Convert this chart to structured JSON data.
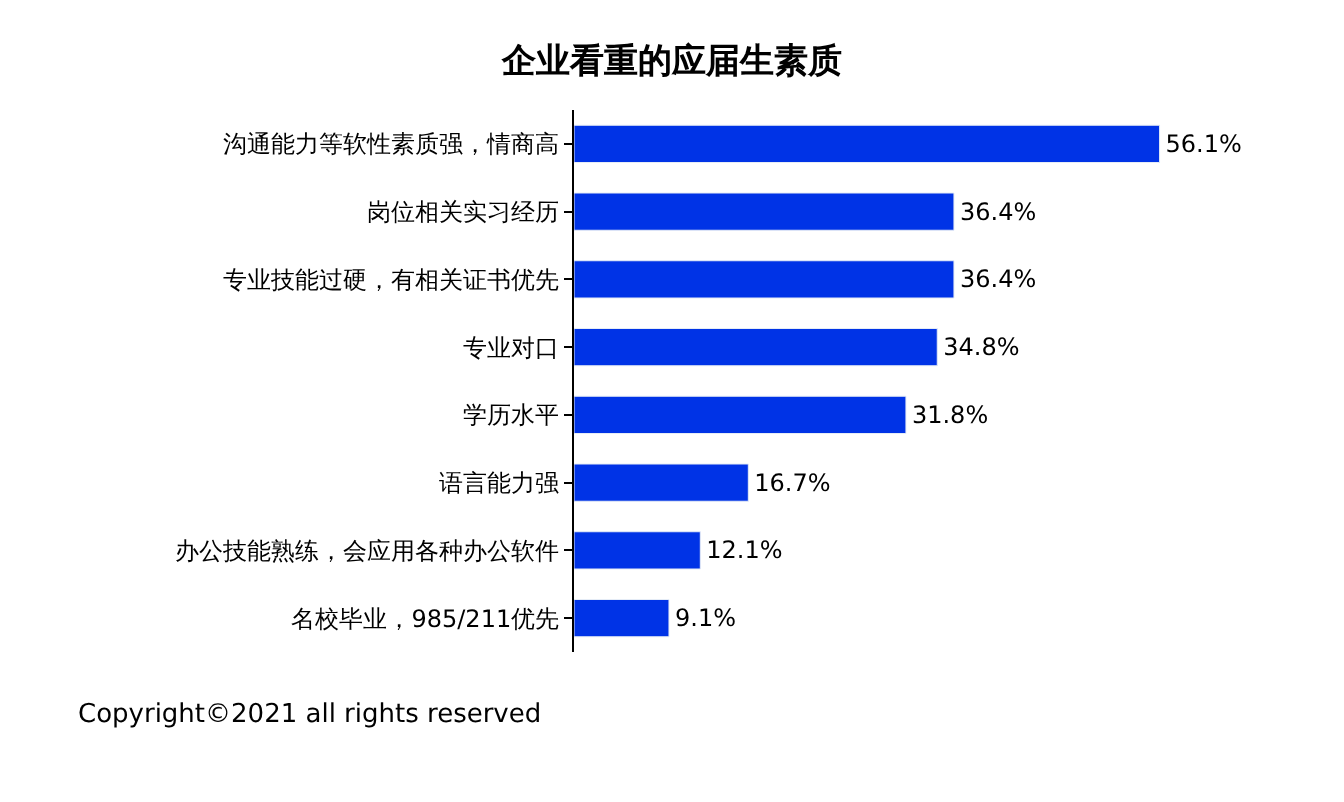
{
  "chart_data": {
    "type": "bar",
    "orientation": "horizontal",
    "title": "企业看重的应届生素质",
    "categories": [
      "沟通能力等软性素质强，情商高",
      "岗位相关实习经历",
      "专业技能过硬，有相关证书优先",
      "专业对口",
      "学历水平",
      "语言能力强",
      "办公技能熟练，会应用各种办公软件",
      "名校毕业，985/211优先"
    ],
    "values": [
      56.1,
      36.4,
      36.4,
      34.8,
      31.8,
      16.7,
      12.1,
      9.1
    ],
    "value_labels": [
      "56.1%",
      "36.4%",
      "36.4%",
      "34.8%",
      "31.8%",
      "16.7%",
      "12.1%",
      "9.1%"
    ],
    "color": "#0033e6",
    "legend": false,
    "annotations": [
      "Copyright©2021 all rights reserved"
    ]
  }
}
